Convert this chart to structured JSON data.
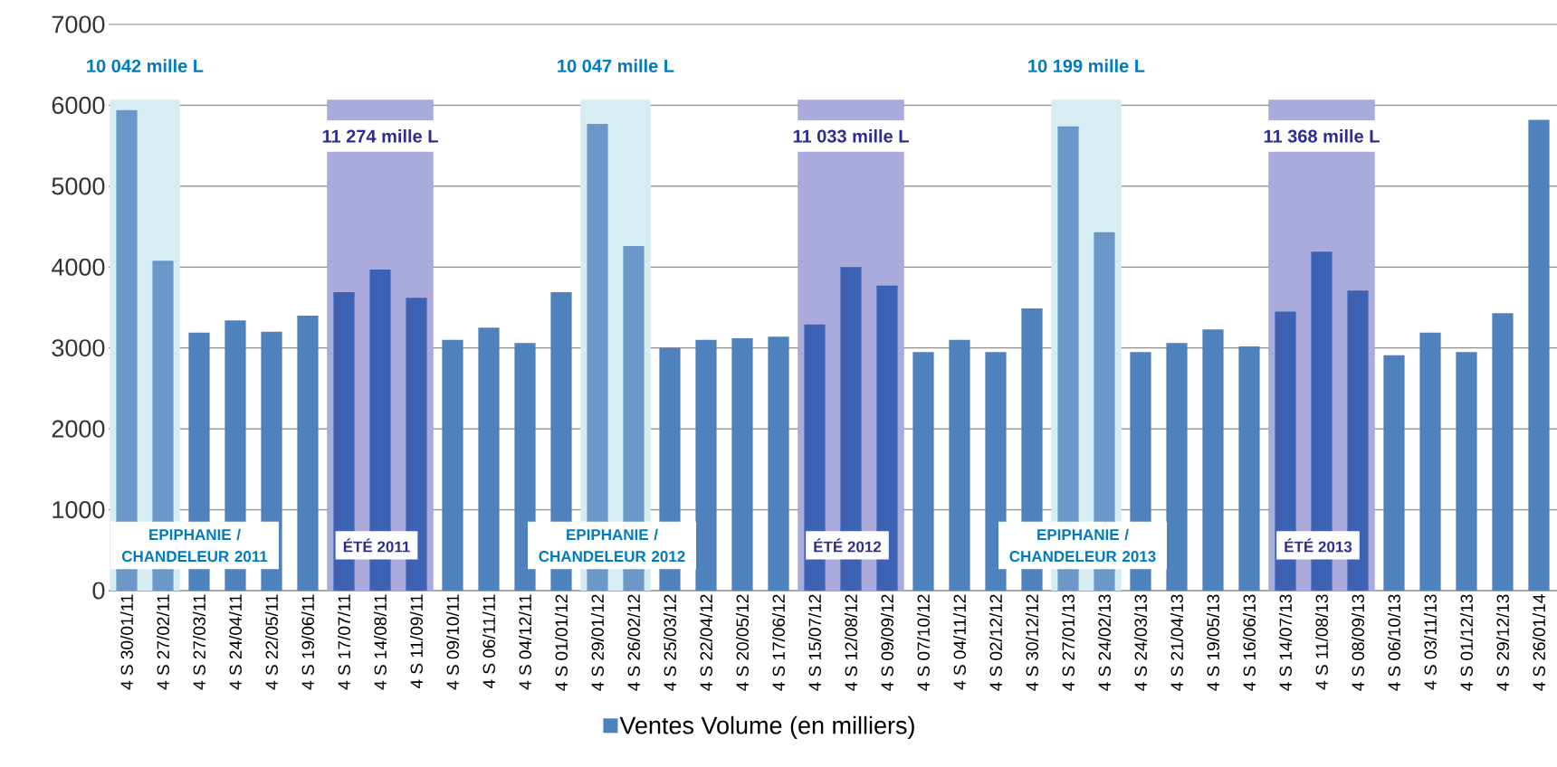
{
  "chart_data": {
    "type": "bar",
    "categories": [
      "4 S 30/01/11",
      "4 S 27/02/11",
      "4 S 27/03/11",
      "4 S 24/04/11",
      "4 S 22/05/11",
      "4 S 19/06/11",
      "4 S 17/07/11",
      "4 S 14/08/11",
      "4 S 11/09/11",
      "4 S 09/10/11",
      "4 S 06/11/11",
      "4 S 04/12/11",
      "4 S 01/01/12",
      "4 S 29/01/12",
      "4 S 26/02/12",
      "4 S 25/03/12",
      "4 S 22/04/12",
      "4 S 20/05/12",
      "4 S 17/06/12",
      "4 S 15/07/12",
      "4 S 12/08/12",
      "4 S 09/09/12",
      "4 S 07/10/12",
      "4 S 04/11/12",
      "4 S 02/12/12",
      "4 S 30/12/12",
      "4 S 27/01/13",
      "4 S 24/02/13",
      "4 S 24/03/13",
      "4 S 21/04/13",
      "4 S 19/05/13",
      "4 S 16/06/13",
      "4 S 14/07/13",
      "4 S 11/08/13",
      "4 S 08/09/13",
      "4 S 06/10/13",
      "4 S 03/11/13",
      "4 S 01/12/13",
      "4 S 29/12/13",
      "4 S 26/01/14"
    ],
    "series": [
      {
        "name": "Ventes Volume (en milliers)",
        "color": "#4f81bd",
        "values": [
          5940,
          4080,
          3190,
          3340,
          3200,
          3400,
          3690,
          3970,
          3620,
          3100,
          3250,
          3060,
          3690,
          5770,
          4260,
          3000,
          3100,
          3120,
          3140,
          3290,
          4000,
          3770,
          2950,
          3100,
          2950,
          3490,
          5740,
          4430,
          2950,
          3060,
          3230,
          3020,
          3450,
          4190,
          3710,
          2910,
          3190,
          2950,
          3430,
          5820
        ],
        "colors": [
          "#6a97c8",
          "#6a97c8",
          "#4f81bd",
          "#4f81bd",
          "#4f81bd",
          "#4f81bd",
          "#3d62b4",
          "#3d62b4",
          "#3d62b4",
          "#4f81bd",
          "#4f81bd",
          "#4f81bd",
          "#4f81bd",
          "#6a97c8",
          "#6a97c8",
          "#4f81bd",
          "#4f81bd",
          "#4f81bd",
          "#4f81bd",
          "#3d62b4",
          "#3d62b4",
          "#3d62b4",
          "#4f81bd",
          "#4f81bd",
          "#4f81bd",
          "#4f81bd",
          "#6a97c8",
          "#6a97c8",
          "#4f81bd",
          "#4f81bd",
          "#4f81bd",
          "#4f81bd",
          "#3d62b4",
          "#3d62b4",
          "#3d62b4",
          "#4f81bd",
          "#4f81bd",
          "#4f81bd",
          "#4f81bd",
          "#4f81bd"
        ]
      }
    ],
    "ylim": [
      0,
      7000
    ],
    "yticks": [
      0,
      1000,
      2000,
      3000,
      4000,
      5000,
      6000,
      7000
    ],
    "grid": "y",
    "legend": "bottom",
    "bands": [
      {
        "axis": "x",
        "from": "4 S 30/01/11",
        "to": "4 S 27/02/11",
        "label": "EPIPHANIE / CHANDELEUR 2011",
        "color": "#d6eef3"
      },
      {
        "axis": "x",
        "from": "4 S 17/07/11",
        "to": "4 S 11/09/11",
        "label": "ÉTÉ 2011",
        "color": "#aaaadc"
      },
      {
        "axis": "x",
        "from": "4 S 29/01/12",
        "to": "4 S 26/02/12",
        "label": "EPIPHANIE / CHANDELEUR 2012",
        "color": "#d6eef3"
      },
      {
        "axis": "x",
        "from": "4 S 15/07/12",
        "to": "4 S 09/09/12",
        "label": "ÉTÉ 2012",
        "color": "#aaaadc"
      },
      {
        "axis": "x",
        "from": "4 S 27/01/13",
        "to": "4 S 24/02/13",
        "label": "EPIPHANIE / CHANDELEUR 2013",
        "color": "#d6eef3"
      },
      {
        "axis": "x",
        "from": "4 S 14/07/13",
        "to": "4 S 08/09/13",
        "label": "ÉTÉ 2013",
        "color": "#aaaadc"
      }
    ],
    "annotations": [
      "10 042 mille L",
      "11 274 mille L",
      "10 047 mille L",
      "11 033 mille L",
      "10 199 mille L",
      "11 368 mille L"
    ]
  }
}
